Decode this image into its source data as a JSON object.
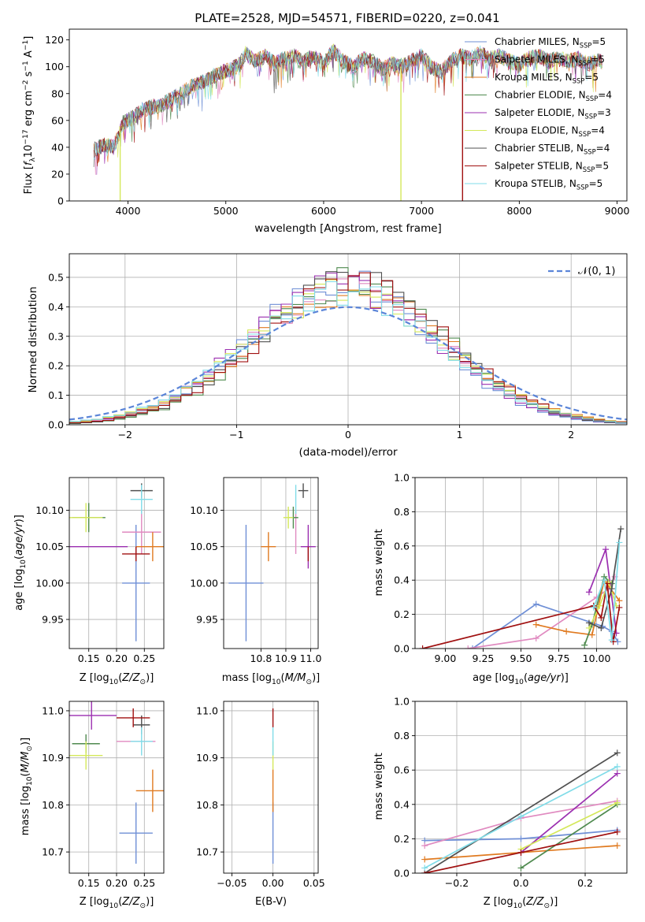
{
  "figure": {
    "title": "PLATE=2528, MJD=54571, FIBERID=0220, z=0.041"
  },
  "colors": {
    "Chabrier MILES": "#6f8fd6",
    "Salpeter MILES": "#e08ac0",
    "Kroupa MILES": "#e07a20",
    "Chabrier ELODIE": "#4f8a4f",
    "Salpeter ELODIE": "#9b2fb0",
    "Kroupa ELODIE": "#d4e85a",
    "Chabrier STELIB": "#505050",
    "Salpeter STELIB": "#a01010",
    "Kroupa STELIB": "#80dce8"
  },
  "chart_data": [
    {
      "id": "spectrum",
      "type": "line",
      "title": "PLATE=2528, MJD=54571, FIBERID=0220, z=0.041",
      "xlabel": "wavelength [Angstrom, rest frame]",
      "ylabel": "Flux [f_λ10^-17 erg cm^-2 s^-1 A^-1]",
      "xlim": [
        3400,
        9100
      ],
      "ylim": [
        0,
        128
      ],
      "xticks": [
        4000,
        5000,
        6000,
        7000,
        8000,
        9000
      ],
      "yticks": [
        0,
        20,
        40,
        60,
        80,
        100,
        120
      ],
      "legend_position": "top-right",
      "legend": [
        "Chabrier MILES, N_SSP=5",
        "Salpeter MILES, N_SSP=5",
        "Kroupa MILES, N_SSP=5",
        "Chabrier ELODIE, N_SSP=4",
        "Salpeter ELODIE, N_SSP=3",
        "Kroupa ELODIE, N_SSP=4",
        "Chabrier STELIB, N_SSP=4",
        "Salpeter STELIB, N_SSP=5",
        "Kroupa STELIB, N_SSP=5"
      ],
      "envelope": {
        "x": [
          3650,
          3750,
          3850,
          3950,
          4050,
          4150,
          4250,
          4350,
          4450,
          4550,
          4650,
          4750,
          4850,
          4950,
          5050,
          5150,
          5200,
          5300,
          5400,
          5500,
          5600,
          5700,
          5800,
          5900,
          6000,
          6100,
          6200,
          6300,
          6400,
          6500,
          6600,
          6700,
          6800,
          6900,
          7000,
          7100,
          7200,
          7300,
          7400,
          7500,
          7600,
          7700,
          7800,
          7900,
          8000,
          8100,
          8200,
          8300,
          8400,
          8500,
          8600,
          8700,
          8800
        ],
        "y": [
          38,
          42,
          40,
          58,
          62,
          68,
          70,
          72,
          76,
          80,
          86,
          88,
          92,
          96,
          98,
          102,
          110,
          104,
          108,
          102,
          106,
          108,
          104,
          108,
          102,
          112,
          104,
          100,
          106,
          104,
          98,
          102,
          100,
          104,
          108,
          100,
          96,
          104,
          108,
          106,
          110,
          106,
          108,
          104,
          102,
          106,
          108,
          104,
          106,
          104,
          106,
          102,
          104
        ]
      },
      "dropouts": [
        {
          "model": "Kroupa ELODIE",
          "x": 3920
        },
        {
          "model": "Kroupa ELODIE",
          "x": 6790
        },
        {
          "model": "Salpeter STELIB",
          "x": 7420
        }
      ]
    },
    {
      "id": "residuals",
      "type": "step",
      "xlabel": "(data-model)/error",
      "ylabel": "Normed distribution",
      "xlim": [
        -2.5,
        2.5
      ],
      "ylim": [
        0,
        0.58
      ],
      "xticks": [
        -2,
        -1,
        0,
        1,
        2
      ],
      "yticks": [
        0.0,
        0.1,
        0.2,
        0.3,
        0.4,
        0.5
      ],
      "grid": true,
      "legend_position": "top-right",
      "reference_curve": {
        "name": "N(0,1)",
        "label": "𝒩(0, 1)",
        "mu": 0,
        "sigma": 1,
        "style": "dashed"
      }
    },
    {
      "id": "age-vs-Z",
      "type": "scatter",
      "xlabel": "Z [log10(Z/Z⊙)]",
      "ylabel": "age  [log10(age/yr)]",
      "xlim": [
        0.115,
        0.285
      ],
      "ylim": [
        9.91,
        10.145
      ],
      "xticks": [
        0.15,
        0.2,
        0.25
      ],
      "yticks": [
        9.95,
        10.0,
        10.05,
        10.1
      ],
      "grid": true,
      "points": [
        {
          "model": "Chabrier MILES",
          "x": 0.235,
          "y": 10.0,
          "xerr": 0.025,
          "yerr": 0.08
        },
        {
          "model": "Salpeter MILES",
          "x": 0.245,
          "y": 10.07,
          "xerr": 0.035,
          "yerr": 0.03
        },
        {
          "model": "Kroupa MILES",
          "x": 0.265,
          "y": 10.05,
          "xerr": 0.03,
          "yerr": 0.02
        },
        {
          "model": "Chabrier ELODIE",
          "x": 0.15,
          "y": 10.09,
          "xerr": 0.03,
          "yerr": 0.02
        },
        {
          "model": "Salpeter ELODIE",
          "x": 0.155,
          "y": 10.05,
          "xerr": 0.065,
          "yerr": 0.0
        },
        {
          "model": "Kroupa ELODIE",
          "x": 0.145,
          "y": 10.09,
          "xerr": 0.03,
          "yerr": 0.02
        },
        {
          "model": "Chabrier STELIB",
          "x": 0.245,
          "y": 10.127,
          "xerr": 0.02,
          "yerr": 0.01
        },
        {
          "model": "Salpeter STELIB",
          "x": 0.235,
          "y": 10.04,
          "xerr": 0.025,
          "yerr": 0.01
        },
        {
          "model": "Kroupa STELIB",
          "x": 0.245,
          "y": 10.115,
          "xerr": 0.02,
          "yerr": 0.02
        }
      ]
    },
    {
      "id": "age-vs-mass",
      "type": "scatter",
      "xlabel": "mass [log10(M/M⊙)]",
      "xlim": [
        10.65,
        11.03
      ],
      "ylim": [
        9.91,
        10.145
      ],
      "xticks": [
        10.8,
        10.9,
        11.0
      ],
      "yticks": [
        9.95,
        10.0,
        10.05,
        10.1
      ],
      "grid": true,
      "points": [
        {
          "model": "Chabrier MILES",
          "x": 10.74,
          "y": 10.0,
          "xerr": 0.07,
          "yerr": 0.08
        },
        {
          "model": "Salpeter MILES",
          "x": 10.94,
          "y": 10.07,
          "xerr": 0.0,
          "yerr": 0.03
        },
        {
          "model": "Kroupa MILES",
          "x": 10.83,
          "y": 10.05,
          "xerr": 0.03,
          "yerr": 0.02
        },
        {
          "model": "Chabrier ELODIE",
          "x": 10.93,
          "y": 10.09,
          "xerr": 0.02,
          "yerr": 0.015
        },
        {
          "model": "Salpeter ELODIE",
          "x": 10.99,
          "y": 10.05,
          "xerr": 0.03,
          "yerr": 0.03
        },
        {
          "model": "Kroupa ELODIE",
          "x": 10.91,
          "y": 10.09,
          "xerr": 0.02,
          "yerr": 0.015
        },
        {
          "model": "Chabrier STELIB",
          "x": 10.97,
          "y": 10.127,
          "xerr": 0.02,
          "yerr": 0.01
        },
        {
          "model": "Salpeter STELIB",
          "x": 10.99,
          "y": 10.04,
          "xerr": 0.0,
          "yerr": 0.01
        },
        {
          "model": "Kroupa STELIB",
          "x": 10.94,
          "y": 10.115,
          "xerr": 0.0,
          "yerr": 0.02
        }
      ]
    },
    {
      "id": "weight-vs-age",
      "type": "line",
      "xlabel": "age  [log10(age/yr)]",
      "ylabel": "mass weight",
      "xlim": [
        8.8,
        10.2
      ],
      "ylim": [
        0,
        1
      ],
      "xticks": [
        9.0,
        9.25,
        9.5,
        9.75,
        10.0
      ],
      "yticks": [
        0.0,
        0.2,
        0.4,
        0.6,
        0.8,
        1.0
      ],
      "grid": true,
      "series": [
        {
          "model": "Chabrier MILES",
          "x": [
            9.18,
            9.6,
            10.04,
            10.1,
            10.14
          ],
          "y": [
            0.0,
            0.26,
            0.13,
            0.1,
            0.04
          ]
        },
        {
          "model": "Salpeter MILES",
          "x": [
            9.15,
            9.6,
            10.0,
            10.08,
            10.12
          ],
          "y": [
            0.0,
            0.06,
            0.3,
            0.35,
            0.42
          ]
        },
        {
          "model": "Kroupa MILES",
          "x": [
            9.6,
            9.8,
            9.97,
            10.05,
            10.15
          ],
          "y": [
            0.14,
            0.1,
            0.08,
            0.4,
            0.28
          ]
        },
        {
          "model": "Chabrier ELODIE",
          "x": [
            9.92,
            9.97,
            10.05,
            10.1
          ],
          "y": [
            0.02,
            0.14,
            0.42,
            0.38
          ]
        },
        {
          "model": "Salpeter ELODIE",
          "x": [
            9.95,
            10.06,
            10.13
          ],
          "y": [
            0.33,
            0.58,
            0.09
          ]
        },
        {
          "model": "Kroupa ELODIE",
          "x": [
            9.95,
            10.02,
            10.08,
            10.13
          ],
          "y": [
            0.12,
            0.25,
            0.39,
            0.25
          ]
        },
        {
          "model": "Chabrier STELIB",
          "x": [
            9.95,
            10.03,
            10.1,
            10.16
          ],
          "y": [
            0.15,
            0.12,
            0.35,
            0.7
          ]
        },
        {
          "model": "Salpeter STELIB",
          "x": [
            8.85,
            9.98,
            10.03,
            10.07,
            10.11,
            10.15
          ],
          "y": [
            0.0,
            0.25,
            0.18,
            0.38,
            0.04,
            0.24
          ]
        },
        {
          "model": "Kroupa STELIB",
          "x": [
            9.98,
            10.05,
            10.1,
            10.15
          ],
          "y": [
            0.24,
            0.4,
            0.05,
            0.62
          ]
        }
      ]
    },
    {
      "id": "mass-vs-Z",
      "type": "scatter",
      "xlabel": "Z [log10(Z/Z⊙)]",
      "ylabel": "mass [log10(M/M⊙)]",
      "xlim": [
        0.115,
        0.285
      ],
      "ylim": [
        10.655,
        11.02
      ],
      "xticks": [
        0.15,
        0.2,
        0.25
      ],
      "yticks": [
        10.7,
        10.8,
        10.9,
        11.0
      ],
      "grid": true,
      "points": [
        {
          "model": "Chabrier MILES",
          "x": 0.235,
          "y": 10.74,
          "xerr": 0.03,
          "yerr": 0.065
        },
        {
          "model": "Salpeter MILES",
          "x": 0.235,
          "y": 10.935,
          "xerr": 0.035,
          "yerr": 0.0
        },
        {
          "model": "Kroupa MILES",
          "x": 0.265,
          "y": 10.83,
          "xerr": 0.03,
          "yerr": 0.045
        },
        {
          "model": "Chabrier ELODIE",
          "x": 0.145,
          "y": 10.93,
          "xerr": 0.025,
          "yerr": 0.02
        },
        {
          "model": "Salpeter ELODIE",
          "x": 0.155,
          "y": 10.99,
          "xerr": 0.045,
          "yerr": 0.03
        },
        {
          "model": "Kroupa ELODIE",
          "x": 0.145,
          "y": 10.905,
          "xerr": 0.03,
          "yerr": 0.03
        },
        {
          "model": "Chabrier STELIB",
          "x": 0.245,
          "y": 10.97,
          "xerr": 0.015,
          "yerr": 0.02
        },
        {
          "model": "Salpeter STELIB",
          "x": 0.23,
          "y": 10.985,
          "xerr": 0.03,
          "yerr": 0.02
        },
        {
          "model": "Kroupa STELIB",
          "x": 0.245,
          "y": 10.935,
          "xerr": 0.02,
          "yerr": 0.03
        }
      ]
    },
    {
      "id": "mass-vs-ebv",
      "type": "scatter",
      "xlabel": "E(B-V)",
      "xlim": [
        -0.06,
        0.055
      ],
      "ylim": [
        10.655,
        11.02
      ],
      "xticks": [
        -0.05,
        0.0,
        0.05
      ],
      "yticks": [
        10.7,
        10.8,
        10.9,
        11.0
      ],
      "grid": true,
      "points": [
        {
          "model": "Chabrier MILES",
          "x": 0.0,
          "y": 10.74,
          "yerr": 0.065
        },
        {
          "model": "Kroupa MILES",
          "x": 0.0,
          "y": 10.83,
          "yerr": 0.045
        },
        {
          "model": "Kroupa ELODIE",
          "x": 0.0,
          "y": 10.905,
          "yerr": 0.03
        },
        {
          "model": "Kroupa STELIB",
          "x": 0.0,
          "y": 10.935,
          "yerr": 0.03
        },
        {
          "model": "Salpeter STELIB",
          "x": 0.0,
          "y": 10.985,
          "yerr": 0.02
        }
      ]
    },
    {
      "id": "weight-vs-Z",
      "type": "line",
      "xlabel": "Z [log10(Z/Z⊙)]",
      "ylabel": "mass weight",
      "xlim": [
        -0.33,
        0.33
      ],
      "ylim": [
        0,
        1
      ],
      "xticks": [
        -0.2,
        0.0,
        0.2
      ],
      "yticks": [
        0.0,
        0.2,
        0.4,
        0.6,
        0.8,
        1.0
      ],
      "grid": true,
      "series": [
        {
          "model": "Chabrier MILES",
          "x": [
            -0.3,
            0.0,
            0.3
          ],
          "y": [
            0.19,
            0.2,
            0.25
          ]
        },
        {
          "model": "Salpeter MILES",
          "x": [
            -0.3,
            0.0,
            0.3
          ],
          "y": [
            0.16,
            0.32,
            0.42
          ]
        },
        {
          "model": "Kroupa MILES",
          "x": [
            -0.3,
            0.0,
            0.3
          ],
          "y": [
            0.08,
            0.12,
            0.16
          ]
        },
        {
          "model": "Chabrier ELODIE",
          "x": [
            0.0,
            0.3
          ],
          "y": [
            0.03,
            0.4
          ]
        },
        {
          "model": "Salpeter ELODIE",
          "x": [
            0.0,
            0.3
          ],
          "y": [
            0.12,
            0.58
          ]
        },
        {
          "model": "Kroupa ELODIE",
          "x": [
            0.0,
            0.3
          ],
          "y": [
            0.14,
            0.41
          ]
        },
        {
          "model": "Chabrier STELIB",
          "x": [
            -0.3,
            0.3
          ],
          "y": [
            0.0,
            0.7
          ]
        },
        {
          "model": "Salpeter STELIB",
          "x": [
            -0.3,
            0.0,
            0.3
          ],
          "y": [
            0.0,
            0.12,
            0.24
          ]
        },
        {
          "model": "Kroupa STELIB",
          "x": [
            -0.3,
            0.0,
            0.3
          ],
          "y": [
            0.03,
            0.33,
            0.62
          ]
        }
      ]
    }
  ]
}
